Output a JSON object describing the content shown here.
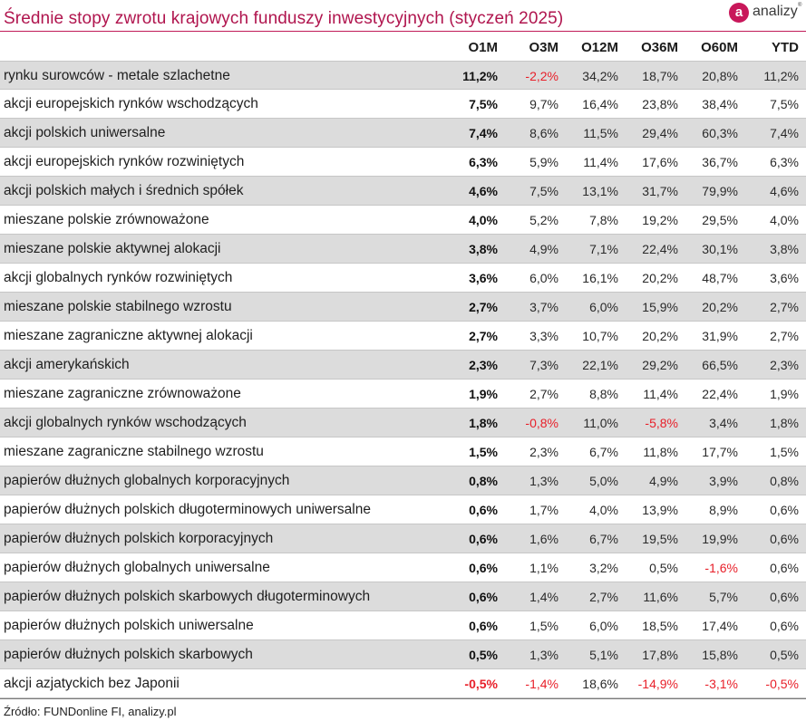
{
  "title": "Średnie stopy zwrotu krajowych funduszy inwestycyjnych (styczeń 2025)",
  "brand": {
    "logo_letter": "a",
    "name": "analizy",
    "reg": "®",
    "color": "#c8175a"
  },
  "source": "Źródło: FUNDonline FI, analizy.pl",
  "chart_data": {
    "type": "table",
    "title": "Średnie stopy zwrotu krajowych funduszy inwestycyjnych (styczeń 2025)",
    "columns": [
      "O1M",
      "O3M",
      "O12M",
      "O36M",
      "O60M",
      "YTD"
    ],
    "negative_color": "#e8202a",
    "rows": [
      {
        "label": "rynku surowców - metale szlachetne",
        "values": [
          "11,2%",
          "-2,2%",
          "34,2%",
          "18,7%",
          "20,8%",
          "11,2%"
        ]
      },
      {
        "label": "akcji europejskich rynków wschodzących",
        "values": [
          "7,5%",
          "9,7%",
          "16,4%",
          "23,8%",
          "38,4%",
          "7,5%"
        ]
      },
      {
        "label": "akcji polskich uniwersalne",
        "values": [
          "7,4%",
          "8,6%",
          "11,5%",
          "29,4%",
          "60,3%",
          "7,4%"
        ]
      },
      {
        "label": "akcji europejskich rynków rozwiniętych",
        "values": [
          "6,3%",
          "5,9%",
          "11,4%",
          "17,6%",
          "36,7%",
          "6,3%"
        ]
      },
      {
        "label": "akcji polskich małych i średnich spółek",
        "values": [
          "4,6%",
          "7,5%",
          "13,1%",
          "31,7%",
          "79,9%",
          "4,6%"
        ]
      },
      {
        "label": "mieszane polskie zrównoważone",
        "values": [
          "4,0%",
          "5,2%",
          "7,8%",
          "19,2%",
          "29,5%",
          "4,0%"
        ]
      },
      {
        "label": "mieszane polskie aktywnej alokacji",
        "values": [
          "3,8%",
          "4,9%",
          "7,1%",
          "22,4%",
          "30,1%",
          "3,8%"
        ]
      },
      {
        "label": "akcji globalnych rynków rozwiniętych",
        "values": [
          "3,6%",
          "6,0%",
          "16,1%",
          "20,2%",
          "48,7%",
          "3,6%"
        ]
      },
      {
        "label": "mieszane polskie stabilnego wzrostu",
        "values": [
          "2,7%",
          "3,7%",
          "6,0%",
          "15,9%",
          "20,2%",
          "2,7%"
        ]
      },
      {
        "label": "mieszane zagraniczne aktywnej alokacji",
        "values": [
          "2,7%",
          "3,3%",
          "10,7%",
          "20,2%",
          "31,9%",
          "2,7%"
        ]
      },
      {
        "label": "akcji amerykańskich",
        "values": [
          "2,3%",
          "7,3%",
          "22,1%",
          "29,2%",
          "66,5%",
          "2,3%"
        ]
      },
      {
        "label": "mieszane zagraniczne zrównoważone",
        "values": [
          "1,9%",
          "2,7%",
          "8,8%",
          "11,4%",
          "22,4%",
          "1,9%"
        ]
      },
      {
        "label": "akcji globalnych rynków wschodzących",
        "values": [
          "1,8%",
          "-0,8%",
          "11,0%",
          "-5,8%",
          "3,4%",
          "1,8%"
        ]
      },
      {
        "label": "mieszane zagraniczne stabilnego wzrostu",
        "values": [
          "1,5%",
          "2,3%",
          "6,7%",
          "11,8%",
          "17,7%",
          "1,5%"
        ]
      },
      {
        "label": "papierów dłużnych globalnych korporacyjnych",
        "values": [
          "0,8%",
          "1,3%",
          "5,0%",
          "4,9%",
          "3,9%",
          "0,8%"
        ]
      },
      {
        "label": "papierów dłużnych polskich długoterminowych uniwersalne",
        "values": [
          "0,6%",
          "1,7%",
          "4,0%",
          "13,9%",
          "8,9%",
          "0,6%"
        ]
      },
      {
        "label": "papierów dłużnych polskich korporacyjnych",
        "values": [
          "0,6%",
          "1,6%",
          "6,7%",
          "19,5%",
          "19,9%",
          "0,6%"
        ]
      },
      {
        "label": "papierów dłużnych globalnych uniwersalne",
        "values": [
          "0,6%",
          "1,1%",
          "3,2%",
          "0,5%",
          "-1,6%",
          "0,6%"
        ]
      },
      {
        "label": "papierów dłużnych polskich skarbowych długoterminowych",
        "values": [
          "0,6%",
          "1,4%",
          "2,7%",
          "11,6%",
          "5,7%",
          "0,6%"
        ]
      },
      {
        "label": "papierów dłużnych polskich uniwersalne",
        "values": [
          "0,6%",
          "1,5%",
          "6,0%",
          "18,5%",
          "17,4%",
          "0,6%"
        ]
      },
      {
        "label": "papierów dłużnych polskich skarbowych",
        "values": [
          "0,5%",
          "1,3%",
          "5,1%",
          "17,8%",
          "15,8%",
          "0,5%"
        ]
      },
      {
        "label": "akcji azjatyckich bez Japonii",
        "values": [
          "-0,5%",
          "-1,4%",
          "18,6%",
          "-14,9%",
          "-3,1%",
          "-0,5%"
        ]
      }
    ]
  }
}
